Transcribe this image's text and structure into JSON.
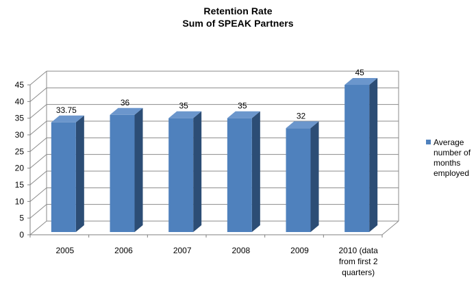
{
  "chart_data": {
    "type": "bar",
    "title_lines": [
      "Retention Rate",
      "Sum of SPEAK Partners"
    ],
    "categories": [
      "2005",
      "2006",
      "2007",
      "2008",
      "2009",
      "2010 (data from first 2 quarters)"
    ],
    "category_label_lines": [
      [
        "2005"
      ],
      [
        "2006"
      ],
      [
        "2007"
      ],
      [
        "2008"
      ],
      [
        "2009"
      ],
      [
        "2010 (data",
        "from first 2",
        "quarters)"
      ]
    ],
    "series": [
      {
        "name": "Average number of months employed",
        "legend_lines": [
          "Average",
          "number of",
          "months",
          "employed"
        ],
        "values": [
          33.75,
          36,
          35,
          35,
          32,
          45
        ],
        "data_labels": [
          "33.75",
          "36",
          "35",
          "35",
          "32",
          "45"
        ],
        "color": "#4f81bd"
      }
    ],
    "ylim": [
      0,
      45
    ],
    "yticks": [
      0,
      5,
      10,
      15,
      20,
      25,
      30,
      35,
      40,
      45
    ],
    "grid": true,
    "style": "3d-column",
    "legend_position": "right"
  },
  "colors": {
    "bar_front": "#4f81bd",
    "bar_side": "#2c4d75",
    "bar_top": "#6b96cc",
    "gridline": "#8a8a8a"
  }
}
